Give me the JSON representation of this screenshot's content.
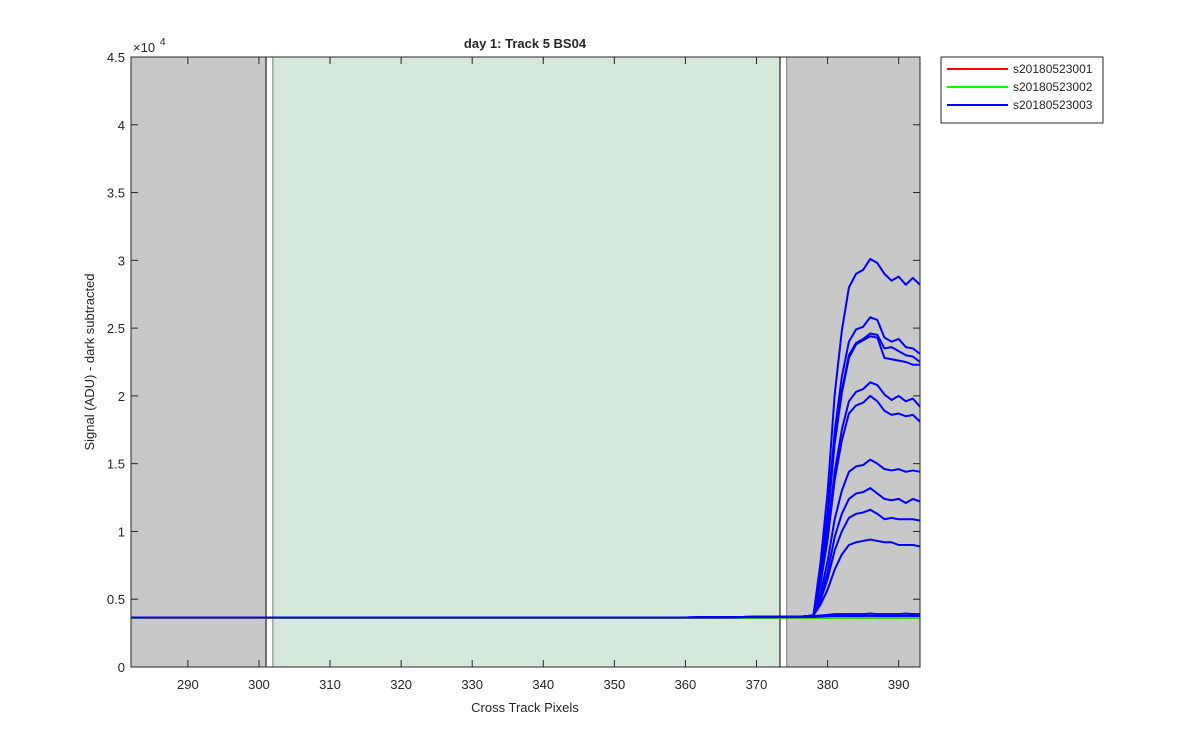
{
  "chart_data": {
    "type": "line",
    "title": "day 1: Track 5  BS04",
    "x_label": "Cross Track Pixels",
    "y_label": "Signal (ADU) - dark subtracted",
    "y_exponent_base": "×10",
    "y_exponent_power": "4",
    "xlim": [
      282,
      393
    ],
    "ylim": [
      0,
      45000
    ],
    "xticks": [
      290,
      300,
      310,
      320,
      330,
      340,
      350,
      360,
      370,
      380,
      390
    ],
    "yticks": [
      0,
      {
        "value": 5000,
        "label": "0.5"
      },
      {
        "value": 10000,
        "label": "1"
      },
      {
        "value": 15000,
        "label": "1.5"
      },
      {
        "value": 20000,
        "label": "2"
      },
      {
        "value": 25000,
        "label": "2.5"
      },
      {
        "value": 30000,
        "label": "3"
      },
      {
        "value": 35000,
        "label": "3.5"
      },
      {
        "value": 40000,
        "label": "4"
      },
      {
        "value": 45000,
        "label": "4.5"
      }
    ],
    "regions": [
      {
        "xlim": [
          282,
          301
        ],
        "color": "#c8c8c8"
      },
      {
        "xlim": [
          301,
          302
        ],
        "color": "#ffffff"
      },
      {
        "xlim": [
          302,
          373.3
        ],
        "color": "#d5e8db"
      },
      {
        "xlim": [
          373.3,
          374.3
        ],
        "color": "#ffffff"
      },
      {
        "xlim": [
          374.3,
          393
        ],
        "color": "#c8c8c8"
      }
    ],
    "legend": "outside-top-right",
    "x": [
      282,
      300,
      320,
      340,
      360,
      370,
      376,
      378,
      379,
      380,
      381,
      382,
      383,
      384,
      385,
      386,
      387,
      388,
      389,
      390,
      391,
      392,
      393
    ],
    "series": [
      {
        "name": "s20180523001",
        "color": "#ff0000",
        "lines": [
          [
            3620,
            3620,
            3620,
            3620,
            3620,
            3620,
            3620,
            3620,
            3620,
            3620,
            3620,
            3620,
            3620,
            3620,
            3620,
            3620,
            3620,
            3620,
            3620,
            3620,
            3620,
            3620,
            3620
          ]
        ]
      },
      {
        "name": "s20180523002",
        "color": "#00ff00",
        "lines": [
          [
            3630,
            3630,
            3630,
            3630,
            3630,
            3630,
            3630,
            3630,
            3630,
            3630,
            3630,
            3630,
            3630,
            3630,
            3630,
            3630,
            3630,
            3630,
            3630,
            3630,
            3630,
            3630,
            3630
          ]
        ]
      },
      {
        "name": "s20180523003",
        "color": "#0000ff",
        "lines": [
          [
            3650,
            3650,
            3650,
            3650,
            3650,
            3700,
            3700,
            3800,
            7700,
            12900,
            20100,
            24800,
            28000,
            29000,
            29300,
            30100,
            29800,
            29000,
            28500,
            28800,
            28200,
            28700,
            28200
          ],
          [
            3650,
            3650,
            3650,
            3650,
            3650,
            3700,
            3700,
            3800,
            7000,
            11400,
            17400,
            21400,
            24000,
            24900,
            25100,
            25800,
            25600,
            24300,
            24000,
            24200,
            23600,
            23500,
            23100
          ],
          [
            3650,
            3650,
            3650,
            3650,
            3650,
            3700,
            3700,
            3800,
            6800,
            11000,
            16700,
            20400,
            23000,
            23900,
            24200,
            24600,
            24500,
            23500,
            23600,
            23300,
            23000,
            22900,
            22500
          ],
          [
            3650,
            3650,
            3650,
            3650,
            3650,
            3700,
            3700,
            3800,
            6700,
            10900,
            16500,
            20200,
            22800,
            23800,
            24100,
            24400,
            24300,
            22800,
            22700,
            22600,
            22500,
            22300,
            22300
          ],
          [
            3650,
            3650,
            3650,
            3650,
            3650,
            3700,
            3700,
            3800,
            6300,
            9800,
            14400,
            17500,
            19600,
            20300,
            20500,
            21000,
            20800,
            20100,
            19700,
            20000,
            19600,
            19800,
            19200
          ],
          [
            3650,
            3650,
            3650,
            3650,
            3650,
            3700,
            3700,
            3800,
            6100,
            9400,
            13800,
            16700,
            18700,
            19300,
            19500,
            20000,
            19600,
            18900,
            18600,
            18700,
            18500,
            18600,
            18100
          ],
          [
            3650,
            3650,
            3650,
            3650,
            3650,
            3700,
            3700,
            3800,
            5400,
            7800,
            10900,
            13000,
            14400,
            14800,
            14900,
            15300,
            15000,
            14600,
            14500,
            14600,
            14400,
            14500,
            14400
          ],
          [
            3650,
            3650,
            3650,
            3650,
            3650,
            3700,
            3700,
            3800,
            5100,
            7000,
            9600,
            11300,
            12400,
            12800,
            12900,
            13200,
            12800,
            12400,
            12300,
            12400,
            12100,
            12400,
            12200
          ],
          [
            3650,
            3650,
            3650,
            3650,
            3650,
            3700,
            3700,
            3800,
            4900,
            6500,
            8600,
            10000,
            11000,
            11300,
            11400,
            11600,
            11300,
            10900,
            11000,
            10900,
            10900,
            10900,
            10800
          ],
          [
            3650,
            3650,
            3650,
            3650,
            3650,
            3700,
            3700,
            3800,
            4600,
            5700,
            7200,
            8300,
            9000,
            9200,
            9300,
            9400,
            9300,
            9200,
            9200,
            9000,
            9000,
            9000,
            8900
          ],
          [
            3650,
            3650,
            3650,
            3650,
            3650,
            3700,
            3700,
            3750,
            3800,
            3850,
            3900,
            3900,
            3900,
            3900,
            3900,
            3950,
            3900,
            3900,
            3900,
            3900,
            3950,
            3900,
            3900
          ],
          [
            3650,
            3650,
            3650,
            3650,
            3650,
            3680,
            3680,
            3700,
            3720,
            3740,
            3760,
            3760,
            3760,
            3760,
            3760,
            3780,
            3760,
            3760,
            3760,
            3760,
            3780,
            3760,
            3760
          ]
        ]
      }
    ]
  }
}
